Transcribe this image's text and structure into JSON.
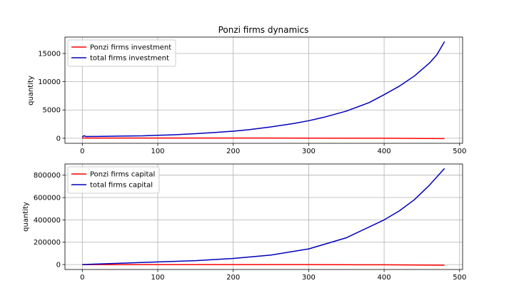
{
  "chart_data": [
    {
      "type": "line",
      "title": "Ponzi firms dynamics",
      "xlabel": "",
      "ylabel": "quantity",
      "xlim": [
        -23,
        504
      ],
      "ylim": [
        -900,
        17900
      ],
      "xticks": [
        0,
        100,
        200,
        300,
        400,
        500
      ],
      "yticks": [
        0,
        5000,
        10000,
        15000
      ],
      "grid": true,
      "legend": "top-left",
      "series": [
        {
          "name": "Ponzi firms investment",
          "color": "#ff0000",
          "x": [
            0,
            100,
            200,
            300,
            400,
            440,
            480
          ],
          "y": [
            30,
            30,
            30,
            20,
            0,
            -30,
            -60
          ]
        },
        {
          "name": "total firms investment",
          "color": "#0000bb",
          "x": [
            0,
            2,
            5,
            20,
            50,
            80,
            100,
            120,
            150,
            180,
            200,
            220,
            250,
            280,
            300,
            320,
            350,
            380,
            400,
            420,
            440,
            460,
            470,
            480
          ],
          "y": [
            150,
            450,
            300,
            320,
            380,
            420,
            520,
            600,
            800,
            1050,
            1250,
            1500,
            2000,
            2600,
            3100,
            3700,
            4800,
            6300,
            7700,
            9200,
            11000,
            13300,
            14800,
            17100
          ]
        }
      ]
    },
    {
      "type": "line",
      "title": "",
      "xlabel": "",
      "ylabel": "quantity",
      "xlim": [
        -23,
        504
      ],
      "ylim": [
        -44000,
        900000
      ],
      "xticks": [
        0,
        100,
        200,
        300,
        400,
        500
      ],
      "yticks": [
        0,
        200000,
        400000,
        600000,
        800000
      ],
      "grid": true,
      "legend": "top-left",
      "series": [
        {
          "name": "Ponzi firms capital",
          "color": "#ff0000",
          "x": [
            0,
            100,
            200,
            300,
            400,
            480
          ],
          "y": [
            0,
            0,
            0,
            0,
            -2000,
            -6000
          ]
        },
        {
          "name": "total firms capital",
          "color": "#0000bb",
          "x": [
            0,
            50,
            100,
            150,
            200,
            250,
            300,
            350,
            400,
            420,
            440,
            460,
            480
          ],
          "y": [
            0,
            12000,
            24000,
            35000,
            55000,
            85000,
            140000,
            240000,
            400000,
            480000,
            580000,
            710000,
            860000
          ]
        }
      ]
    }
  ]
}
